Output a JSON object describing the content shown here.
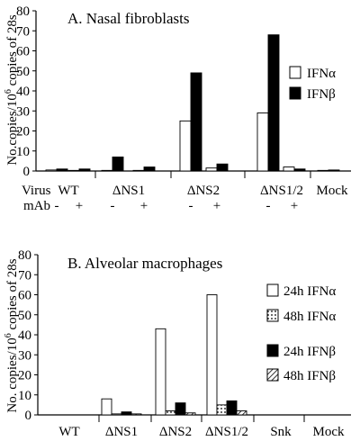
{
  "chart_data": [
    {
      "type": "bar",
      "panel": "A",
      "title": "A. Nasal fibroblasts",
      "ylabel": "No.copies/10^6 copies of 28s",
      "ylabel_main": "No.copies/10",
      "ylabel_sup": "6",
      "ylabel_tail": " copies of 28s",
      "ylim": [
        0,
        80
      ],
      "yticks": [
        0,
        10,
        20,
        30,
        40,
        50,
        60,
        70,
        80
      ],
      "row_labels": {
        "virus": "Virus",
        "mab": "mAb"
      },
      "groups": [
        "WT",
        "ΔNS1",
        "ΔNS2",
        "ΔNS1/2",
        "Mock"
      ],
      "categories": [
        "WT -",
        "WT +",
        "ΔNS1 -",
        "ΔNS1 +",
        "ΔNS2 -",
        "ΔNS2 +",
        "ΔNS1/2 -",
        "ΔNS1/2 +",
        "Mock"
      ],
      "mab_marks": [
        "-",
        "+",
        "-",
        "+",
        "-",
        "+",
        "-",
        "+",
        ""
      ],
      "legend_position": "right",
      "series": [
        {
          "name": "IFNα",
          "style": "open",
          "values": [
            0.5,
            0.3,
            0.3,
            0.3,
            25,
            1.5,
            29,
            2,
            0.3
          ]
        },
        {
          "name": "IFNβ",
          "style": "solid",
          "values": [
            1,
            1,
            7,
            2,
            49,
            3.5,
            68,
            1,
            0.5
          ]
        }
      ]
    },
    {
      "type": "bar",
      "panel": "B",
      "title": "B. Alveolar macrophages",
      "ylabel": "No. copies/10^6 copies of 28s",
      "ylabel_main": "No. copies/10",
      "ylabel_sup": "6",
      "ylabel_tail": " copies of 28s",
      "ylim": [
        0,
        80
      ],
      "yticks": [
        0,
        10,
        20,
        30,
        40,
        50,
        60,
        70,
        80
      ],
      "categories": [
        "WT",
        "ΔNS1",
        "ΔNS2",
        "ΔNS1/2",
        "Snk",
        "Mock"
      ],
      "legend_position": "right",
      "series": [
        {
          "name": "24h IFNα",
          "style": "open",
          "values": [
            0,
            8,
            43,
            60,
            0,
            0
          ]
        },
        {
          "name": "48h IFNα",
          "style": "dotted",
          "values": [
            0,
            0.5,
            2,
            5,
            0,
            0
          ]
        },
        {
          "name": "24h IFNβ",
          "style": "solid",
          "values": [
            0,
            1.5,
            6,
            7,
            0,
            0
          ]
        },
        {
          "name": "48h IFNβ",
          "style": "hatched",
          "values": [
            0,
            0.5,
            1,
            2,
            0,
            0
          ]
        }
      ]
    }
  ],
  "colors": {
    "ink": "#000000",
    "background": "#ffffff"
  }
}
